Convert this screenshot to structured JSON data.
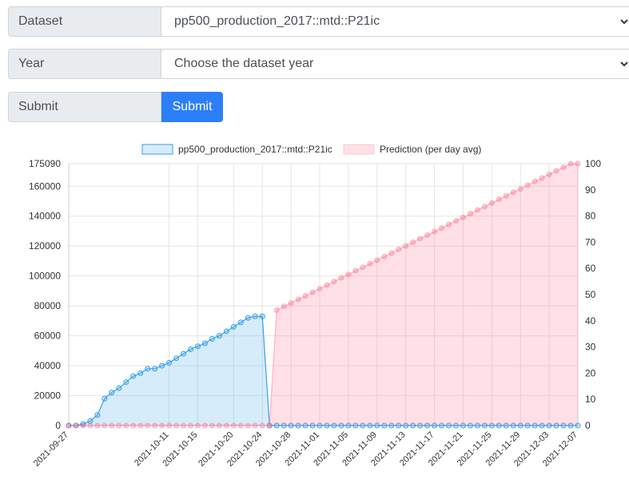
{
  "form": {
    "dataset": {
      "label": "Dataset",
      "value": "pp500_production_2017::mtd::P21ic"
    },
    "year": {
      "label": "Year",
      "value": "Choose the dataset year"
    },
    "submit": {
      "label": "Submit",
      "button_label": "Submit"
    }
  },
  "colors": {
    "accent": "#2d7ff9",
    "series1": "#36a2eb",
    "series2": "#ff6384"
  },
  "chart_data": {
    "type": "area",
    "title": "",
    "legend_position": "top",
    "grid": true,
    "x": [
      "2021-09-27",
      "2021-09-28",
      "2021-09-29",
      "2021-09-30",
      "2021-10-01",
      "2021-10-02",
      "2021-10-03",
      "2021-10-04",
      "2021-10-05",
      "2021-10-06",
      "2021-10-07",
      "2021-10-08",
      "2021-10-09",
      "2021-10-10",
      "2021-10-11",
      "2021-10-12",
      "2021-10-13",
      "2021-10-14",
      "2021-10-15",
      "2021-10-16",
      "2021-10-17",
      "2021-10-18",
      "2021-10-19",
      "2021-10-20",
      "2021-10-21",
      "2021-10-22",
      "2021-10-23",
      "2021-10-24",
      "2021-10-25",
      "2021-10-26",
      "2021-10-27",
      "2021-10-28",
      "2021-10-29",
      "2021-10-30",
      "2021-10-31",
      "2021-11-01",
      "2021-11-02",
      "2021-11-03",
      "2021-11-04",
      "2021-11-05",
      "2021-11-06",
      "2021-11-07",
      "2021-11-08",
      "2021-11-09",
      "2021-11-10",
      "2021-11-11",
      "2021-11-12",
      "2021-11-13",
      "2021-11-14",
      "2021-11-15",
      "2021-11-16",
      "2021-11-17",
      "2021-11-18",
      "2021-11-19",
      "2021-11-20",
      "2021-11-21",
      "2021-11-22",
      "2021-11-23",
      "2021-11-24",
      "2021-11-25",
      "2021-11-26",
      "2021-11-27",
      "2021-11-28",
      "2021-11-29",
      "2021-11-30",
      "2021-12-01",
      "2021-12-02",
      "2021-12-03",
      "2021-12-04",
      "2021-12-05",
      "2021-12-06",
      "2021-12-07"
    ],
    "x_tick_labels": [
      "2021-09-27",
      "2021-10-11",
      "2021-10-15",
      "2021-10-20",
      "2021-10-24",
      "2021-10-28",
      "2021-11-01",
      "2021-11-05",
      "2021-11-09",
      "2021-11-13",
      "2021-11-17",
      "2021-11-21",
      "2021-11-25",
      "2021-11-29",
      "2021-12-03",
      "2021-12-07"
    ],
    "y_left": {
      "min": 0,
      "max": 175090,
      "ticks": [
        0,
        20000,
        40000,
        60000,
        80000,
        100000,
        120000,
        140000,
        160000,
        175090
      ]
    },
    "y_right": {
      "min": 0,
      "max": 100,
      "ticks": [
        0,
        10,
        20,
        30,
        40,
        50,
        60,
        70,
        80,
        90,
        100
      ]
    },
    "series": [
      {
        "name": "pp500_production_2017::mtd::P21ic",
        "axis": "left",
        "color": "#36a2eb",
        "values": [
          0,
          0,
          1000,
          3000,
          7000,
          18000,
          22000,
          25000,
          29000,
          33000,
          35000,
          38000,
          38000,
          40000,
          42000,
          45000,
          48000,
          51000,
          53000,
          55000,
          58000,
          60000,
          63000,
          66000,
          69000,
          72000,
          73000,
          73000,
          0,
          0,
          0,
          0,
          0,
          0,
          0,
          0,
          0,
          0,
          0,
          0,
          0,
          0,
          0,
          0,
          0,
          0,
          0,
          0,
          0,
          0,
          0,
          0,
          0,
          0,
          0,
          0,
          0,
          0,
          0,
          0,
          0,
          0,
          0,
          0,
          0,
          0,
          0,
          0,
          0,
          0,
          0,
          0
        ]
      },
      {
        "name": "Prediction (per day avg)",
        "axis": "right",
        "color": "#ff6384",
        "values": [
          0,
          0,
          0,
          0,
          0,
          0,
          0,
          0,
          0,
          0,
          0,
          0,
          0,
          0,
          0,
          0,
          0,
          0,
          0,
          0,
          0,
          0,
          0,
          0,
          0,
          0,
          0,
          0,
          0,
          44.1,
          45.5,
          46.8,
          48.2,
          49.5,
          50.9,
          52.3,
          53.6,
          55.0,
          56.4,
          57.7,
          59.1,
          60.4,
          61.8,
          63.2,
          64.5,
          65.9,
          67.3,
          68.6,
          70.0,
          71.4,
          72.7,
          74.1,
          75.4,
          76.8,
          78.2,
          79.5,
          80.9,
          82.3,
          83.6,
          85.0,
          86.4,
          87.7,
          89.1,
          90.4,
          91.8,
          93.2,
          94.5,
          95.9,
          97.3,
          98.6,
          100.0,
          100.0
        ]
      }
    ]
  }
}
